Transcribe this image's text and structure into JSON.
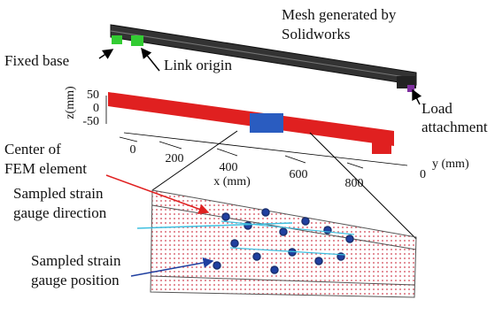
{
  "top_panel": {
    "mesh_label": [
      "Mesh generated by",
      "Solidworks"
    ],
    "fixed_base": "Fixed base",
    "link_origin": "Link origin",
    "load_label": [
      "Load",
      "attachment"
    ]
  },
  "middle_panel": {
    "z_axis_label": "z(mm)",
    "z_ticks": [
      "50",
      "0",
      "-50"
    ],
    "x_ticks": [
      "0",
      "200",
      "400",
      "600",
      "800"
    ],
    "x_axis_label": "x (mm)",
    "y_axis_label": "y (mm)",
    "y_tick": "0"
  },
  "bottom_panel": {
    "fem_label": [
      "Center of",
      "FEM element"
    ],
    "direction_label": [
      "Sampled strain",
      "gauge direction"
    ],
    "position_label": [
      "Sampled strain",
      "gauge position"
    ]
  }
}
